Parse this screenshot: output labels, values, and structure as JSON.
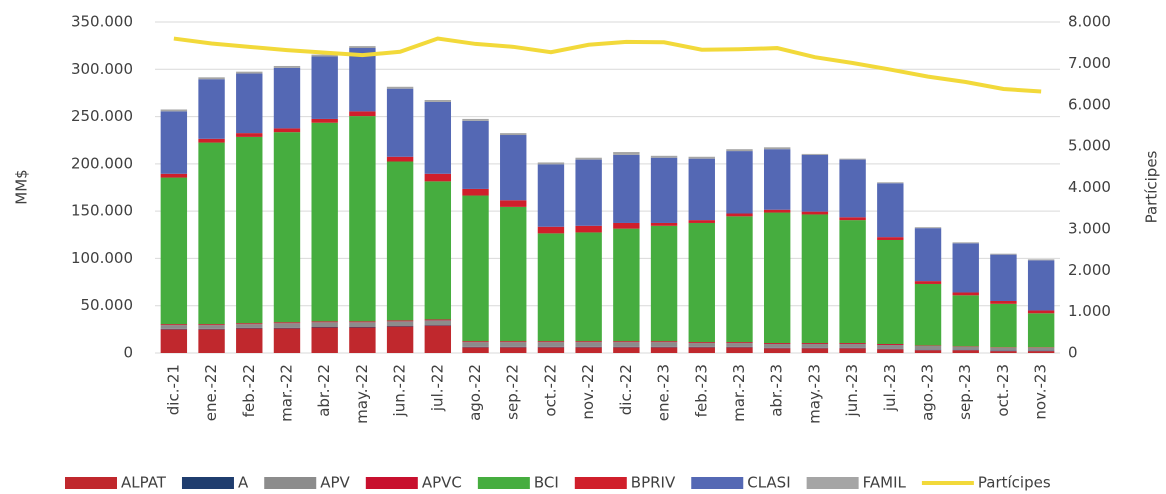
{
  "chart_data": {
    "type": "bar",
    "stacked": true,
    "y_label": "MM$",
    "y2_label": "Partícipes",
    "categories": [
      "dic.-21",
      "ene.-22",
      "feb.-22",
      "mar.-22",
      "abr.-22",
      "may.-22",
      "jun.-22",
      "jul.-22",
      "ago.-22",
      "sep.-22",
      "oct.-22",
      "nov.-22",
      "dic.-22",
      "ene.-23",
      "feb.-23",
      "mar.-23",
      "abr.-23",
      "may.-23",
      "jun.-23",
      "jul.-23",
      "ago.-23",
      "sep.-23",
      "oct.-23",
      "nov.-23"
    ],
    "ylim": [
      0,
      350000
    ],
    "yticks": [
      0,
      {
        "value": 50000,
        "label": "50.000"
      },
      {
        "value": 100000,
        "label": "100.000"
      },
      {
        "value": 150000,
        "label": "150.000"
      },
      {
        "value": 200000,
        "label": "200.000"
      },
      {
        "value": 250000,
        "label": "250.000"
      },
      {
        "value": 300000,
        "label": "300.000"
      },
      {
        "value": 350000,
        "label": "350.000"
      }
    ],
    "y2lim": [
      0,
      8000
    ],
    "y2ticks": [
      0,
      {
        "value": 1000,
        "label": "1.000"
      },
      {
        "value": 2000,
        "label": "2.000"
      },
      {
        "value": 3000,
        "label": "3.000"
      },
      {
        "value": 4000,
        "label": "4.000"
      },
      {
        "value": 5000,
        "label": "5.000"
      },
      {
        "value": 6000,
        "label": "6.000"
      },
      {
        "value": 7000,
        "label": "7.000"
      },
      {
        "value": 8000,
        "label": "8.000"
      }
    ],
    "grid": true,
    "legend": "bottom",
    "series": [
      {
        "name": "ALPAT",
        "color": "#c0282d",
        "values": [
          25000,
          25000,
          26000,
          26000,
          27000,
          27000,
          28000,
          29000,
          6000,
          6000,
          6000,
          6000,
          6000,
          6000,
          6000,
          6000,
          5000,
          5000,
          5000,
          4000,
          3000,
          3000,
          2000,
          2000
        ]
      },
      {
        "name": "A",
        "color": "#1f3d6e",
        "values": [
          500,
          500,
          500,
          500,
          500,
          500,
          500,
          500,
          500,
          500,
          500,
          500,
          500,
          500,
          500,
          500,
          500,
          500,
          500,
          500,
          500,
          500,
          500,
          500
        ]
      },
      {
        "name": "APV",
        "color": "#8c8c8c",
        "values": [
          4000,
          4000,
          4000,
          5000,
          5000,
          5000,
          5000,
          5000,
          5000,
          5000,
          5000,
          5000,
          5000,
          5000,
          4000,
          4000,
          4000,
          4000,
          4000,
          4000,
          4000,
          3000,
          3000,
          3000
        ]
      },
      {
        "name": "APVC",
        "color": "#c8102e",
        "values": [
          1000,
          1000,
          1000,
          1000,
          1000,
          1000,
          1000,
          1000,
          1000,
          1000,
          1000,
          1000,
          1000,
          1000,
          1000,
          1000,
          1000,
          1000,
          1000,
          1000,
          500,
          500,
          500,
          500
        ]
      },
      {
        "name": "BCI",
        "color": "#46ad3f",
        "values": [
          155000,
          192000,
          197000,
          201000,
          210000,
          217000,
          168000,
          146000,
          154000,
          142000,
          114000,
          115000,
          119000,
          122000,
          126000,
          133000,
          138000,
          136000,
          130000,
          110000,
          65000,
          54000,
          46000,
          36000
        ]
      },
      {
        "name": "BPRIV",
        "color": "#d01f2b",
        "values": [
          4000,
          4000,
          4000,
          4000,
          4000,
          5000,
          5000,
          8000,
          7000,
          7000,
          7000,
          7000,
          6000,
          3000,
          3000,
          3000,
          3000,
          3000,
          3000,
          3000,
          3000,
          3000,
          3000,
          3000
        ]
      },
      {
        "name": "CLASI",
        "color": "#5468b4",
        "values": [
          66000,
          63000,
          63000,
          64000,
          66000,
          67000,
          72000,
          76000,
          72000,
          69000,
          66000,
          70000,
          72000,
          69000,
          65000,
          66000,
          64000,
          60000,
          61000,
          57000,
          56000,
          52000,
          49000,
          53000
        ]
      },
      {
        "name": "FAMIL",
        "color": "#a5a5a5",
        "values": [
          2000,
          2000,
          2000,
          2000,
          2000,
          2000,
          2000,
          2000,
          2000,
          2000,
          2000,
          2000,
          3000,
          2000,
          2000,
          2000,
          2000,
          1000,
          1000,
          1000,
          1000,
          1000,
          1000,
          1000
        ]
      },
      {
        "name": "Partícipes",
        "type": "line",
        "axis": "y2",
        "color": "#f2d93a",
        "values": [
          7600,
          7480,
          7400,
          7320,
          7260,
          7200,
          7280,
          7600,
          7470,
          7400,
          7270,
          7450,
          7520,
          7510,
          7330,
          7340,
          7370,
          7150,
          7010,
          6850,
          6680,
          6550,
          6380,
          6320
        ]
      }
    ]
  }
}
